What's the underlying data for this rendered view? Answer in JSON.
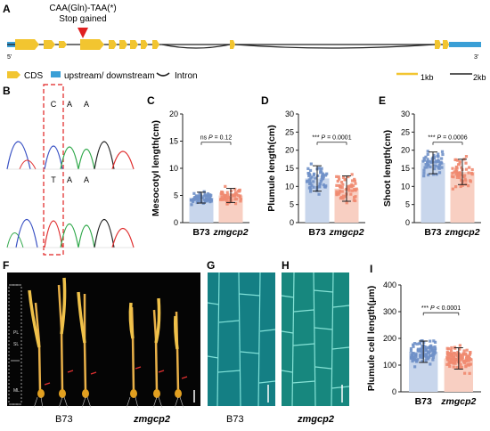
{
  "panel_labels": {
    "a": "A",
    "b": "B",
    "c": "C",
    "d": "D",
    "e": "E",
    "f": "F",
    "g": "G",
    "h": "H",
    "i": "I"
  },
  "gene_model": {
    "mutation_label": "CAA(Gln)-TAA(*)",
    "mutation_sub": "Stop gained",
    "five_prime": "5'",
    "three_prime": "3'",
    "legend": {
      "cds": "CDS",
      "utr": "upstream/ downstream",
      "intron": "Intron",
      "scale_1": "1kb",
      "scale_2": "2kb"
    },
    "colors": {
      "cds": "#f2c530",
      "utr": "#3a9fd6",
      "marker": "#e02020"
    }
  },
  "chromatogram": {
    "top_bases": [
      "C",
      "A",
      "A"
    ],
    "bottom_bases": [
      "T",
      "A",
      "A"
    ],
    "colors": {
      "c": "#3a52c4",
      "a": "#2fa84a",
      "g": "#222222",
      "t": "#e03030"
    }
  },
  "photos": {
    "f": {
      "group_left": "B73",
      "group_right": "zmgcp2",
      "ruler_labels": [
        "PL",
        "SL",
        "ML"
      ]
    },
    "g": {
      "label": "B73"
    },
    "h": {
      "label": "zmgcp2"
    }
  },
  "colors": {
    "b73_fill": "#c8d6ec",
    "b73_dot": "#6f90c8",
    "mut_fill": "#f8cfc2",
    "mut_dot": "#f08a70"
  },
  "chart_data": [
    {
      "id": "C",
      "type": "bar",
      "ylabel": "Mesocotyl length(cm)",
      "categories": [
        "B73",
        "zmgcp2"
      ],
      "values": [
        4.6,
        5.0
      ],
      "error": [
        1.0,
        1.3
      ],
      "ylim": [
        0,
        20
      ],
      "yticks": [
        0,
        5,
        10,
        15,
        20
      ],
      "sig": {
        "ns": "ns",
        "P_label": "P",
        "eq": " = ",
        "value": "0.12"
      }
    },
    {
      "id": "D",
      "type": "bar",
      "ylabel": "Plumule length(cm)",
      "categories": [
        "B73",
        "zmgcp2"
      ],
      "values": [
        12.2,
        9.4
      ],
      "error": [
        3.5,
        3.5
      ],
      "ylim": [
        0,
        30
      ],
      "yticks": [
        0,
        5,
        10,
        15,
        20,
        25,
        30
      ],
      "sig": {
        "ns": "***",
        "P_label": "P",
        "eq": " = ",
        "value": "0.0001"
      }
    },
    {
      "id": "E",
      "type": "bar",
      "ylabel": "Shoot length(cm)",
      "categories": [
        "B73",
        "zmgcp2"
      ],
      "values": [
        16.5,
        14.0
      ],
      "error": [
        3.0,
        3.5
      ],
      "ylim": [
        0,
        30
      ],
      "yticks": [
        0,
        5,
        10,
        15,
        20,
        25,
        30
      ],
      "sig": {
        "ns": "***",
        "P_label": "P",
        "eq": " = ",
        "value": "0.0006"
      }
    },
    {
      "id": "I",
      "type": "bar",
      "ylabel": "Plumule cell length(μm)",
      "categories": [
        "B73",
        "zmgcp2"
      ],
      "values": [
        150,
        125
      ],
      "error": [
        40,
        40
      ],
      "ylim": [
        0,
        400
      ],
      "yticks": [
        0,
        100,
        200,
        300,
        400
      ],
      "sig": {
        "ns": "***",
        "P_label": "P",
        "eq": " < ",
        "value": "0.0001"
      }
    }
  ]
}
